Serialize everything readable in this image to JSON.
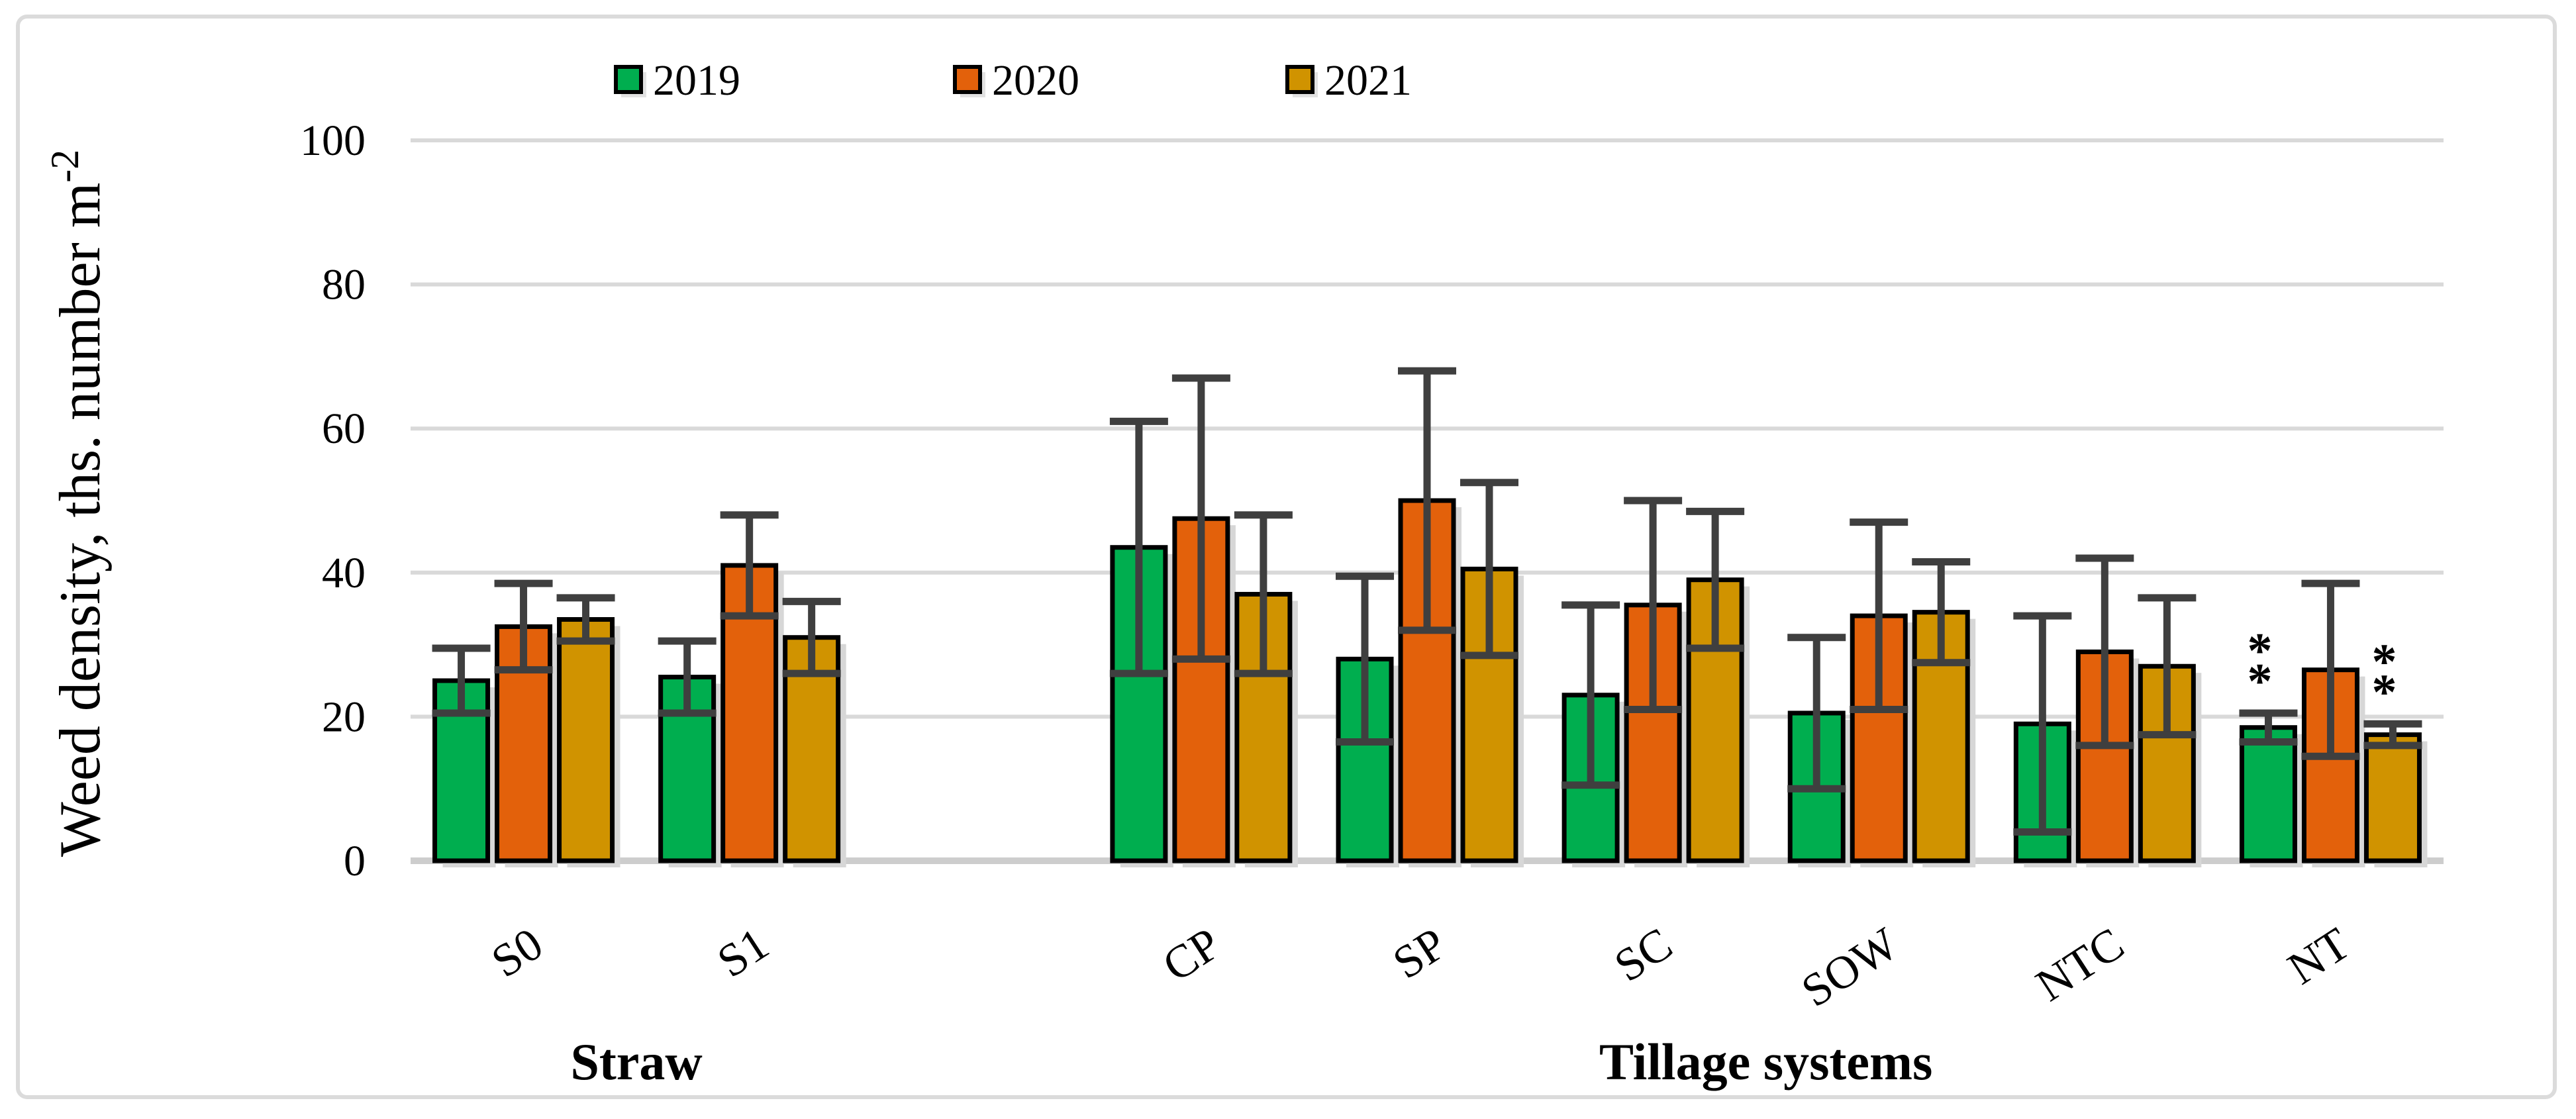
{
  "figure": {
    "background": "#FFFFFF",
    "border_color": "#DBDBDB"
  },
  "chart_data": {
    "type": "bar",
    "title": "",
    "ylabel": "Weed density, ths. number m⁻²",
    "ylabel_main": "Weed density, ths. number m",
    "ylabel_superscript": "-2",
    "ylim": [
      0,
      100
    ],
    "yticks": [
      0,
      20,
      40,
      60,
      80,
      100
    ],
    "grid": true,
    "legend_position": "top",
    "categories": [
      "S0",
      "S1",
      "CP",
      "SP",
      "SC",
      "SOW",
      "NTC",
      "NT"
    ],
    "xlabel_sections": [
      {
        "label": "Straw",
        "categories": [
          "S0",
          "S1"
        ]
      },
      {
        "label": "Tillage systems",
        "categories": [
          "CP",
          "SP",
          "SC",
          "SOW",
          "NTC",
          "NT"
        ]
      }
    ],
    "series": [
      {
        "name": "2019",
        "color": "#00AE4F",
        "values": [
          25,
          25.5,
          43.5,
          28,
          23,
          20.5,
          19,
          18.5
        ],
        "errors": [
          4.5,
          5,
          17.5,
          11.5,
          12.5,
          10.5,
          15,
          2
        ]
      },
      {
        "name": "2020",
        "color": "#E3610B",
        "values": [
          32.5,
          41,
          47.5,
          50,
          35.5,
          34,
          29,
          26.5
        ],
        "errors": [
          6,
          7,
          19.5,
          18,
          14.5,
          13,
          13,
          12
        ]
      },
      {
        "name": "2021",
        "color": "#D09300",
        "values": [
          33.5,
          31,
          37,
          40.5,
          39,
          34.5,
          27,
          17.5
        ],
        "errors": [
          3,
          5,
          11,
          12,
          9.5,
          7,
          9.5,
          1.5
        ]
      }
    ],
    "annotations": [
      {
        "category": "NT",
        "series": "2019",
        "text": "**"
      },
      {
        "category": "NT",
        "series": "2021",
        "text": "**"
      }
    ],
    "colors": {
      "gridline": "#D9D9D9",
      "axis_line": "#CDCDCD",
      "error_bar": "#3F3F3F",
      "bar_border": "#000000",
      "bar_shadow": "#D7D7D7",
      "text": "#000000"
    }
  }
}
